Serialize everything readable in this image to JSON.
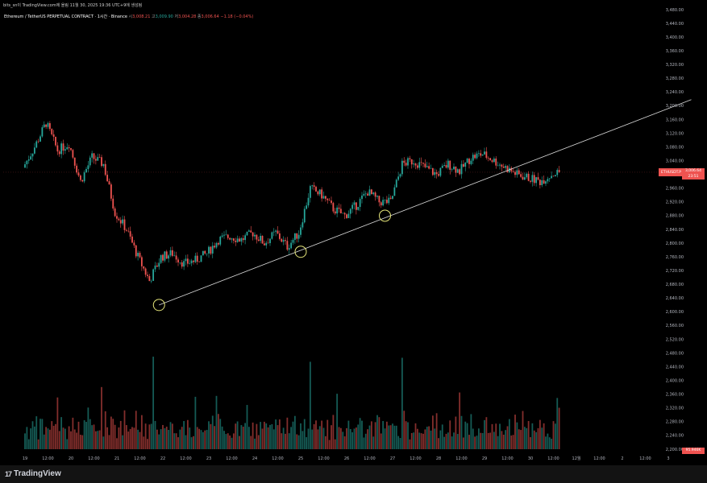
{
  "header": {
    "text": "bits_sn이 TradingView.com에 올림 11월 30, 2025 19:36 UTC+9에 생성됨"
  },
  "legend": {
    "symbol": "Ethereum / TetherUS PERPETUAL CONTRACT · 1시간 · Binance",
    "o_label": "시",
    "o_value": "3,008.21",
    "h_label": "고",
    "h_value": "3,009.90",
    "l_label": "저",
    "l_value": "3,004.28",
    "c_label": "종",
    "c_value": "3,006.64 −1.18 (−0.04%)"
  },
  "price_tag": {
    "symbol": "ETHUSDT.P",
    "price": "3,006.64",
    "countdown": "23:51"
  },
  "volume_tag": {
    "value": "95.946K"
  },
  "footer": {
    "logo_mark": "17",
    "logo_text": "TradingView"
  },
  "colors": {
    "up": "#26a69a",
    "down": "#ef5350",
    "trendline": "#d9d9d9",
    "circle": "#e6e67a",
    "background": "#000000"
  },
  "chart_data": {
    "type": "candlestick",
    "ylim": [
      2200,
      3480
    ],
    "y_ticks": [
      "3,480.00",
      "3,440.00",
      "3,400.00",
      "3,360.00",
      "3,320.00",
      "3,280.00",
      "3,240.00",
      "3,200.00",
      "3,160.00",
      "3,120.00",
      "3,080.00",
      "3,040.00",
      "3,000.00",
      "2,960.00",
      "2,920.00",
      "2,880.00",
      "2,840.00",
      "2,800.00",
      "2,760.00",
      "2,720.00",
      "2,680.00",
      "2,640.00",
      "2,600.00",
      "2,560.00",
      "2,520.00",
      "2,480.00",
      "2,440.00",
      "2,400.00",
      "2,360.00",
      "2,320.00",
      "2,280.00",
      "2,240.00",
      "2,200.00"
    ],
    "x_ticks": [
      "19",
      "12:00",
      "20",
      "12:00",
      "21",
      "12:00",
      "22",
      "12:00",
      "23",
      "12:00",
      "24",
      "12:00",
      "25",
      "12:00",
      "26",
      "12:00",
      "27",
      "12:00",
      "28",
      "12:00",
      "29",
      "12:00",
      "30",
      "12:00",
      "12월",
      "12:00",
      "2",
      "12:00",
      "3"
    ],
    "price_path": [
      {
        "t": "11-19 00:00",
        "v": 3020
      },
      {
        "t": "11-19 06:00",
        "v": 3080
      },
      {
        "t": "11-19 12:00",
        "v": 3150
      },
      {
        "t": "11-19 18:00",
        "v": 3070
      },
      {
        "t": "11-20 00:00",
        "v": 3090
      },
      {
        "t": "11-20 06:00",
        "v": 2980
      },
      {
        "t": "11-20 12:00",
        "v": 3050
      },
      {
        "t": "11-20 18:00",
        "v": 3030
      },
      {
        "t": "11-21 00:00",
        "v": 2890
      },
      {
        "t": "11-21 06:00",
        "v": 2840
      },
      {
        "t": "11-21 12:00",
        "v": 2760
      },
      {
        "t": "11-21 18:00",
        "v": 2690
      },
      {
        "t": "11-22 00:00",
        "v": 2760
      },
      {
        "t": "11-22 06:00",
        "v": 2770
      },
      {
        "t": "11-22 12:00",
        "v": 2740
      },
      {
        "t": "11-22 18:00",
        "v": 2750
      },
      {
        "t": "11-23 00:00",
        "v": 2770
      },
      {
        "t": "11-23 06:00",
        "v": 2810
      },
      {
        "t": "11-23 12:00",
        "v": 2820
      },
      {
        "t": "11-23 18:00",
        "v": 2810
      },
      {
        "t": "11-24 00:00",
        "v": 2830
      },
      {
        "t": "11-24 06:00",
        "v": 2800
      },
      {
        "t": "11-24 12:00",
        "v": 2830
      },
      {
        "t": "11-24 18:00",
        "v": 2790
      },
      {
        "t": "11-25 00:00",
        "v": 2830
      },
      {
        "t": "11-25 06:00",
        "v": 2960
      },
      {
        "t": "11-25 12:00",
        "v": 2940
      },
      {
        "t": "11-25 18:00",
        "v": 2900
      },
      {
        "t": "11-26 00:00",
        "v": 2880
      },
      {
        "t": "11-26 06:00",
        "v": 2910
      },
      {
        "t": "11-26 12:00",
        "v": 2950
      },
      {
        "t": "11-26 18:00",
        "v": 2920
      },
      {
        "t": "11-27 00:00",
        "v": 2920
      },
      {
        "t": "11-27 06:00",
        "v": 3030
      },
      {
        "t": "11-27 12:00",
        "v": 3040
      },
      {
        "t": "11-27 18:00",
        "v": 3020
      },
      {
        "t": "11-28 00:00",
        "v": 3000
      },
      {
        "t": "11-28 06:00",
        "v": 3030
      },
      {
        "t": "11-28 12:00",
        "v": 3010
      },
      {
        "t": "11-28 18:00",
        "v": 3050
      },
      {
        "t": "11-29 00:00",
        "v": 3060
      },
      {
        "t": "11-29 06:00",
        "v": 3040
      },
      {
        "t": "11-29 12:00",
        "v": 3020
      },
      {
        "t": "11-29 18:00",
        "v": 3000
      },
      {
        "t": "11-30 00:00",
        "v": 2990
      },
      {
        "t": "11-30 06:00",
        "v": 2980
      },
      {
        "t": "11-30 12:00",
        "v": 3000
      },
      {
        "t": "11-30 16:00",
        "v": 3006.64
      }
    ],
    "trendline": {
      "t1": "11-21 22:00",
      "v1": 2620,
      "t2": "12-03 12:00",
      "v2": 3218
    },
    "touch_points": [
      {
        "t": "11-21 22:00",
        "v": 2620
      },
      {
        "t": "11-25 00:00",
        "v": 2775
      },
      {
        "t": "11-26 20:00",
        "v": 2880
      }
    ],
    "current_price": 3006.64,
    "last_price_line": 3006.64
  }
}
